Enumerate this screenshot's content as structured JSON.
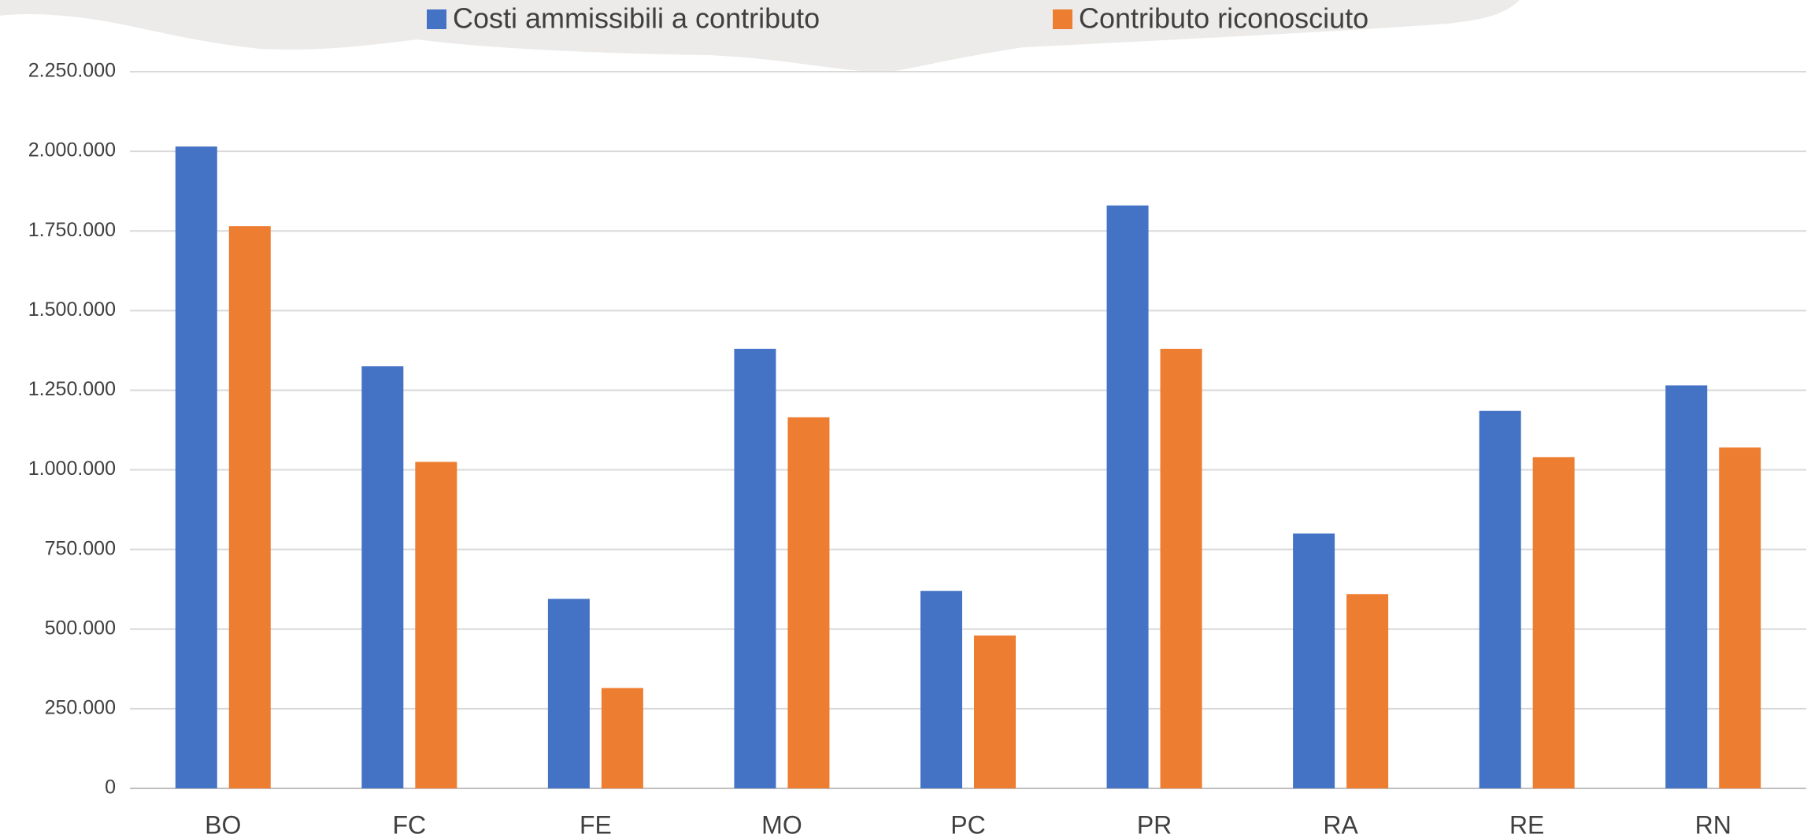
{
  "chart_data": {
    "type": "bar",
    "categories": [
      "BO",
      "FC",
      "FE",
      "MO",
      "PC",
      "PR",
      "RA",
      "RE",
      "RN"
    ],
    "series": [
      {
        "name": "Costi ammissibili a contributo",
        "color": "#4472c4",
        "values": [
          2015000,
          1325000,
          595000,
          1380000,
          620000,
          1830000,
          800000,
          1185000,
          1265000
        ]
      },
      {
        "name": "Contributo riconosciuto",
        "color": "#ed7d31",
        "values": [
          1765000,
          1025000,
          315000,
          1165000,
          480000,
          1380000,
          610000,
          1040000,
          1070000
        ]
      }
    ],
    "ylim": [
      0,
      2250000
    ],
    "yticks": [
      0,
      {
        "value": 250000,
        "label": "250.000"
      },
      {
        "value": 500000,
        "label": "500.000"
      },
      {
        "value": 750000,
        "label": "750.000"
      },
      {
        "value": 1000000,
        "label": "1.000.000"
      },
      {
        "value": 1250000,
        "label": "1.250.000"
      },
      {
        "value": 1500000,
        "label": "1.500.000"
      },
      {
        "value": 1750000,
        "label": "1.750.000"
      },
      {
        "value": 2000000,
        "label": "2.000.000"
      },
      {
        "value": 2250000,
        "label": "2.250.000"
      }
    ],
    "grid": true
  }
}
